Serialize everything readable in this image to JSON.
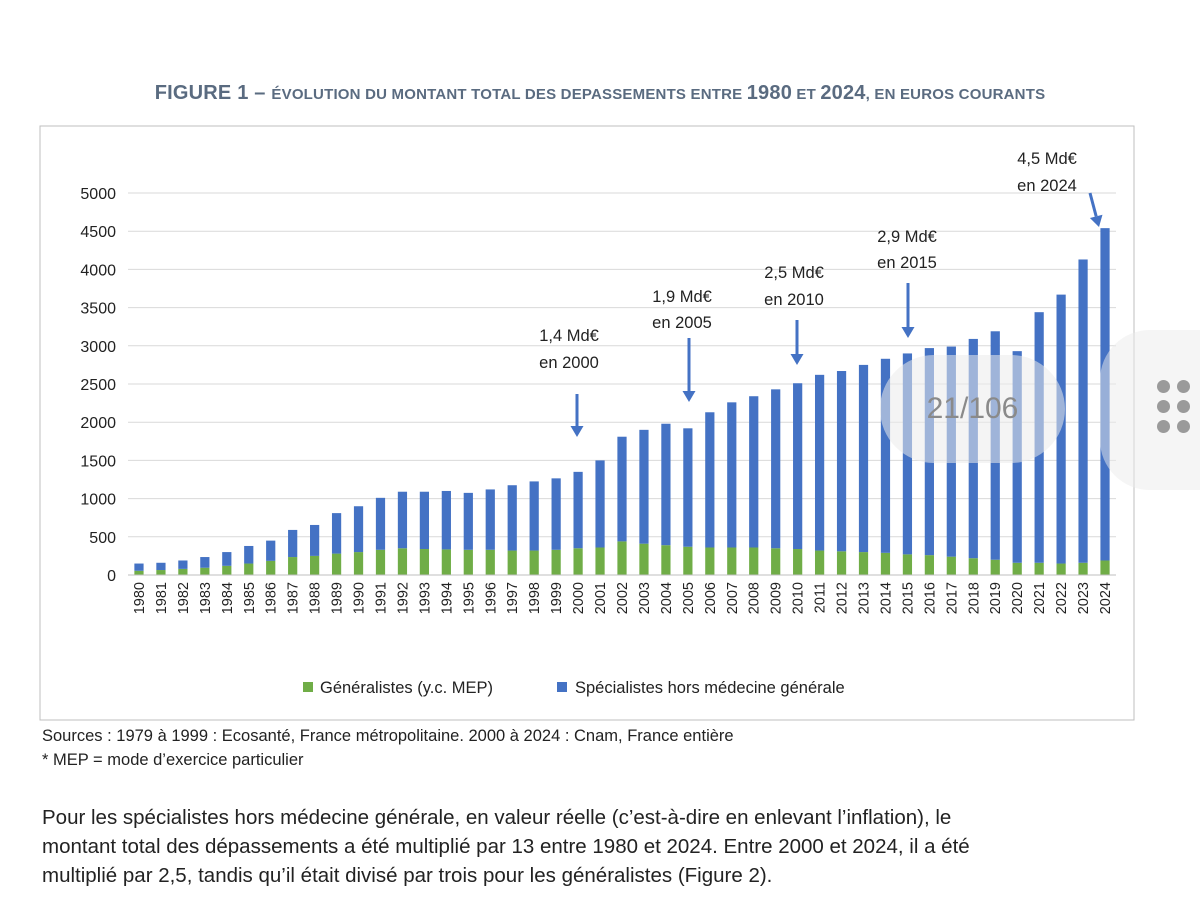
{
  "title": {
    "part1": "Figure 1 – ",
    "part2": "Évolution du montant total des depassements entre ",
    "year1": "1980",
    "part3": " et ",
    "year2": "2024",
    "part4": ", en euros courants"
  },
  "chart_data": {
    "type": "bar",
    "stacked": true,
    "categories": [
      "1980",
      "1981",
      "1982",
      "1983",
      "1984",
      "1985",
      "1986",
      "1987",
      "1988",
      "1989",
      "1990",
      "1991",
      "1992",
      "1993",
      "1994",
      "1995",
      "1996",
      "1997",
      "1998",
      "1999",
      "2000",
      "2001",
      "2002",
      "2003",
      "2004",
      "2005",
      "2006",
      "2007",
      "2008",
      "2009",
      "2010",
      "2011",
      "2012",
      "2013",
      "2014",
      "2015",
      "2016",
      "2017",
      "2018",
      "2019",
      "2020",
      "2021",
      "2022",
      "2023",
      "2024"
    ],
    "series": [
      {
        "name": "Généralistes (y.c. MEP)",
        "color": "#70ad47",
        "values": [
          55,
          65,
          80,
          95,
          120,
          150,
          185,
          235,
          250,
          280,
          300,
          330,
          350,
          340,
          335,
          330,
          330,
          320,
          320,
          330,
          350,
          360,
          440,
          410,
          390,
          370,
          360,
          360,
          360,
          350,
          340,
          320,
          310,
          300,
          290,
          270,
          260,
          240,
          220,
          200,
          160,
          160,
          150,
          160,
          190
        ]
      },
      {
        "name": "Spécialistes hors médecine générale",
        "color": "#4472c4",
        "values": [
          95,
          95,
          110,
          140,
          180,
          230,
          265,
          355,
          405,
          530,
          600,
          680,
          740,
          750,
          765,
          745,
          790,
          855,
          905,
          935,
          1000,
          1140,
          1370,
          1490,
          1590,
          1550,
          1770,
          1900,
          1980,
          2080,
          2170,
          2300,
          2360,
          2450,
          2540,
          2630,
          2710,
          2750,
          2870,
          2990,
          2770,
          3280,
          3520,
          3970,
          4350
        ]
      }
    ],
    "ylim": [
      0,
      5000
    ],
    "yticks": [
      "0",
      "500",
      "1000",
      "1500",
      "2000",
      "2500",
      "3000",
      "3500",
      "4000",
      "4500",
      "5000"
    ],
    "grid": true,
    "legend": "bottom",
    "annotations": [
      {
        "line1": "1,4 Md€",
        "line2": "en 2000",
        "year": "2000"
      },
      {
        "line1": "1,9 Md€",
        "line2": "en 2005",
        "year": "2005"
      },
      {
        "line1": "2,5 Md€",
        "line2": "en 2010",
        "year": "2010"
      },
      {
        "line1": "2,9 Md€",
        "line2": "en 2015",
        "year": "2015"
      },
      {
        "line1": "4,5 Md€",
        "line2": "en 2024",
        "year": "2024"
      }
    ]
  },
  "sources": {
    "line1": "Sources : 1979 à 1999 : Ecosanté, France métropolitaine. 2000 à 2024 : Cnam, France entière",
    "line2": "* MEP = mode d’exercice particulier"
  },
  "paragraph": {
    "line1": "Pour les spécialistes hors médecine générale, en valeur réelle (c’est-à-dire en enlevant l’inflation), le",
    "line2": "montant total des dépassements a été multiplié par 13 entre 1980 et 2024. Entre 2000 et 2024, il a été",
    "line3": "multiplié par 2,5, tandis qu’il était divisé par trois pour les généralistes (Figure 2)."
  },
  "overlay": {
    "page_counter": "21/106",
    "menu_icon": "grid-dots-icon"
  }
}
